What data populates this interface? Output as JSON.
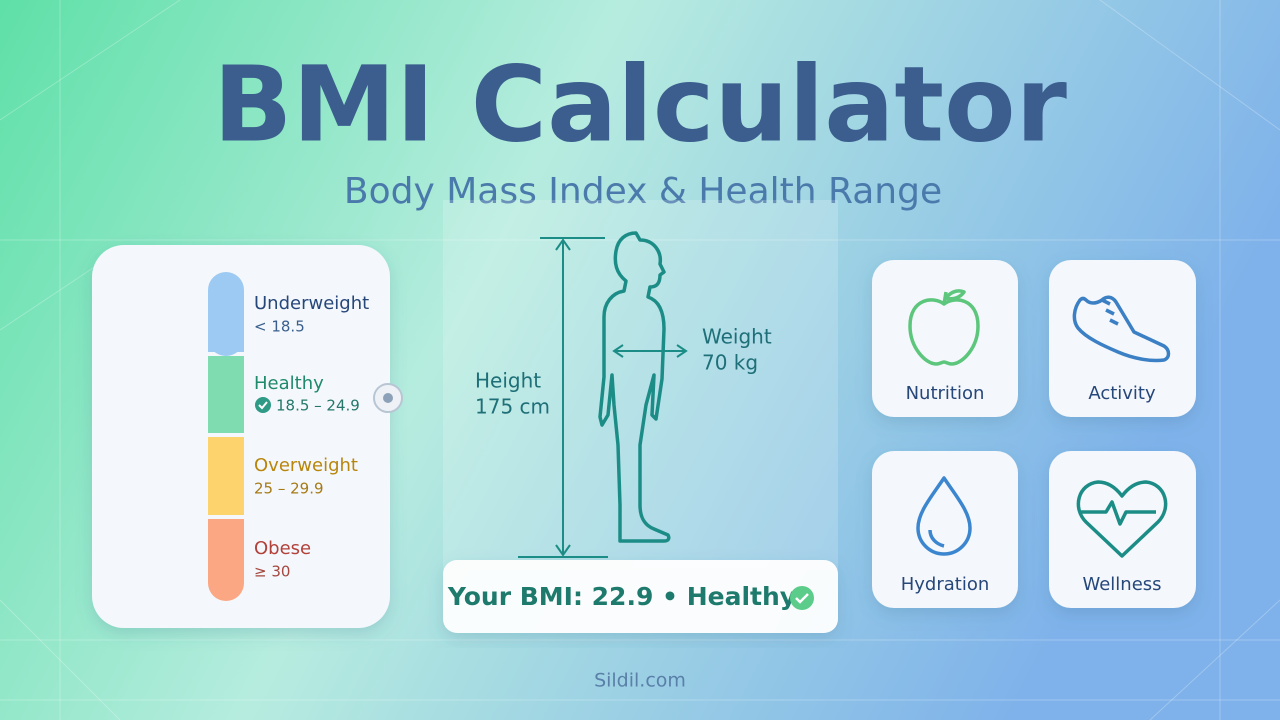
{
  "header": {
    "title": "BMI Calculator",
    "subtitle": "Body Mass Index & Health Range"
  },
  "categories": [
    {
      "name": "Underweight",
      "range": "< 18.5"
    },
    {
      "name": "Healthy",
      "range": "18.5 – 24.9"
    },
    {
      "name": "Overweight",
      "range": "25 – 29.9"
    },
    {
      "name": "Obese",
      "range": "≥ 30"
    }
  ],
  "measurements": {
    "height_label": "Height",
    "height_value": "175 cm",
    "weight_label": "Weight",
    "weight_value": "70 kg"
  },
  "result": "Your BMI: 22.9 • Healthy",
  "tiles": [
    "Nutrition",
    "Activity",
    "Hydration",
    "Wellness"
  ],
  "footer": "Sildil.com"
}
